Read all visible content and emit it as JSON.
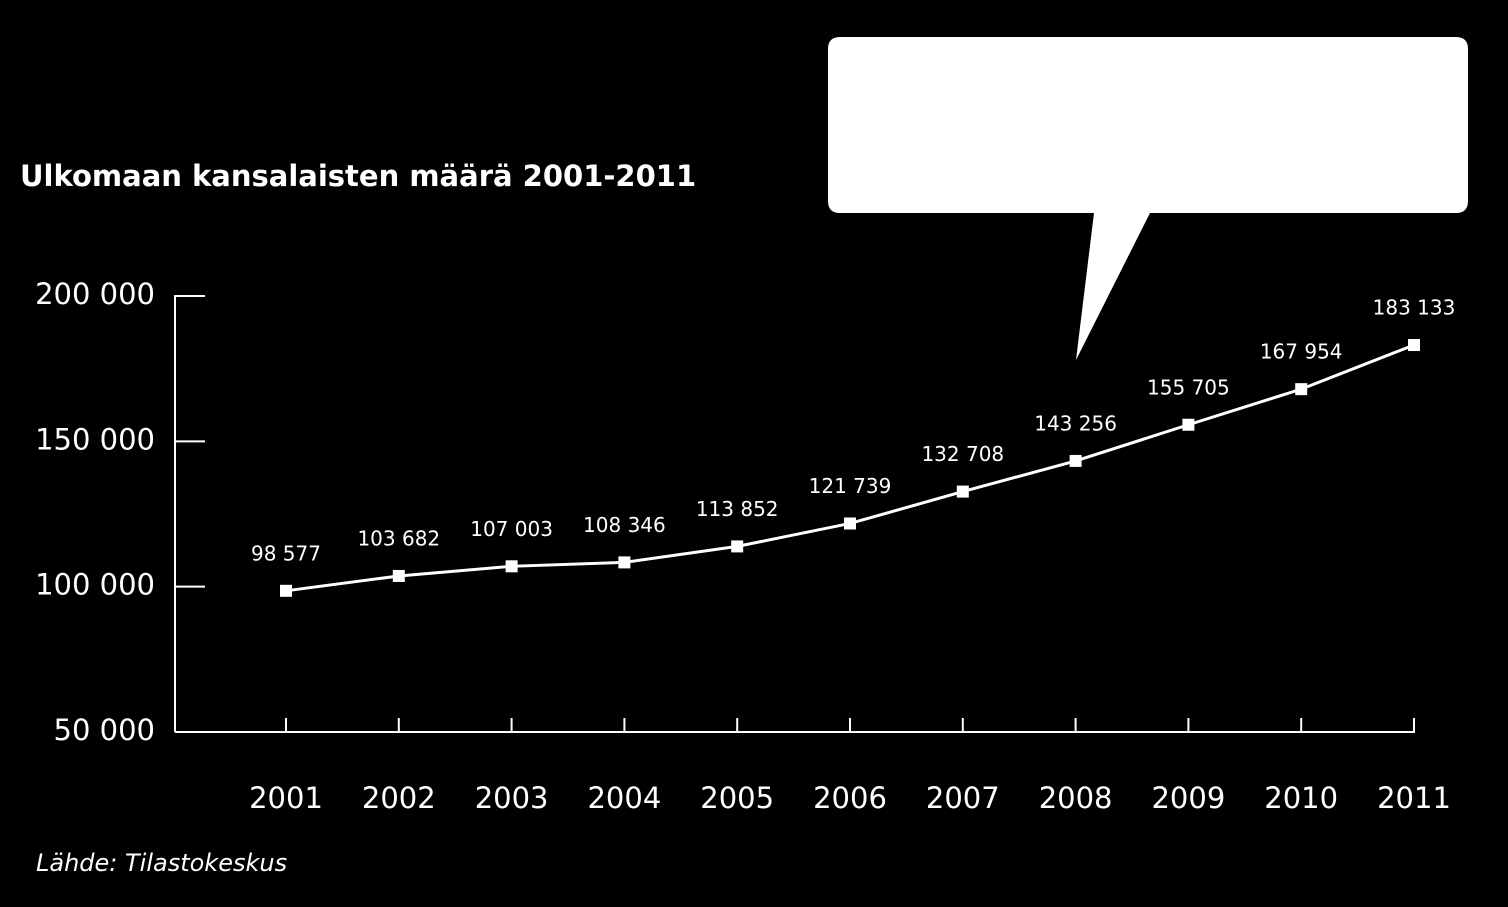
{
  "chart_data": {
    "type": "line",
    "title": "Ulkomaan kansalaisten määrä 2001-2011",
    "source": "Lähde: Tilastokeskus",
    "categories": [
      "2001",
      "2002",
      "2003",
      "2004",
      "2005",
      "2006",
      "2007",
      "2008",
      "2009",
      "2010",
      "2011"
    ],
    "values": [
      98577,
      103682,
      107003,
      108346,
      113852,
      121739,
      132708,
      143256,
      155705,
      167954,
      183133
    ],
    "value_labels": [
      "98 577",
      "103 682",
      "107 003",
      "108 346",
      "113 852",
      "121 739",
      "132 708",
      "143 256",
      "155 705",
      "167 954",
      "183 133"
    ],
    "color": "#ffffff",
    "ylim": [
      50000,
      200000
    ],
    "yticks": [
      {
        "value": 50000,
        "label": "50 000"
      },
      {
        "value": 100000,
        "label": "100 000"
      },
      {
        "value": 150000,
        "label": "150 000"
      },
      {
        "value": 200000,
        "label": "200 000"
      }
    ],
    "grid": false
  }
}
